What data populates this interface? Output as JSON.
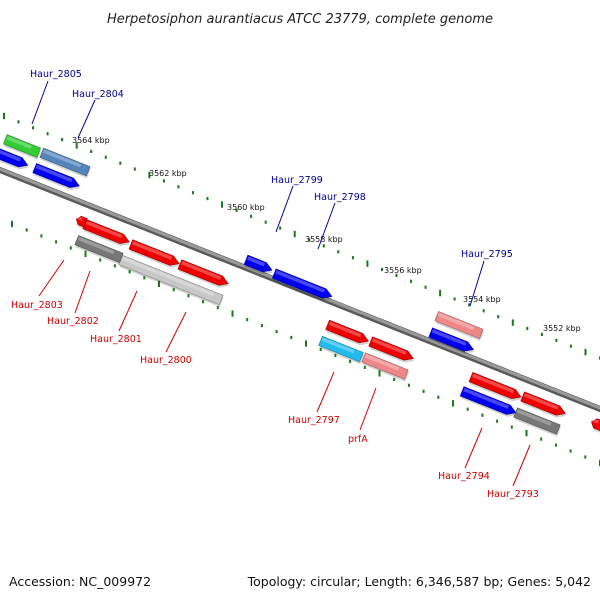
{
  "title": "Herpetosiphon aurantiacus ATCC 23779, complete genome",
  "footer": {
    "accession": "Accession: NC_009972",
    "topology": "Topology: circular; Length: 6,346,587 bp; Genes: 5,042"
  },
  "colors": {
    "backbone": "#8a8a8a",
    "tick": "#1a7a1a",
    "label_top": "#00008b",
    "label_bottom": "#cc0000"
  },
  "ticks": [
    "3564 kbp",
    "3562 kbp",
    "3560 kbp",
    "3558 kbp",
    "3556 kbp",
    "3554 kbp",
    "3552 kbp"
  ],
  "genes": [
    {
      "id": "haur_2805",
      "label": "Haur_2805",
      "side": "top"
    },
    {
      "id": "haur_2804",
      "label": "Haur_2804",
      "side": "top"
    },
    {
      "id": "haur_2799",
      "label": "Haur_2799",
      "side": "top"
    },
    {
      "id": "haur_2798",
      "label": "Haur_2798",
      "side": "top"
    },
    {
      "id": "haur_2795",
      "label": "Haur_2795",
      "side": "top"
    },
    {
      "id": "haur_2803",
      "label": "Haur_2803",
      "side": "bottom"
    },
    {
      "id": "haur_2802",
      "label": "Haur_2802",
      "side": "bottom"
    },
    {
      "id": "haur_2801",
      "label": "Haur_2801",
      "side": "bottom"
    },
    {
      "id": "haur_2800",
      "label": "Haur_2800",
      "side": "bottom"
    },
    {
      "id": "haur_2797",
      "label": "Haur_2797",
      "side": "bottom"
    },
    {
      "id": "prfa",
      "label": "prfA",
      "side": "bottom"
    },
    {
      "id": "haur_2794",
      "label": "Haur_2794",
      "side": "bottom"
    },
    {
      "id": "haur_2793",
      "label": "Haur_2793",
      "side": "bottom"
    }
  ]
}
